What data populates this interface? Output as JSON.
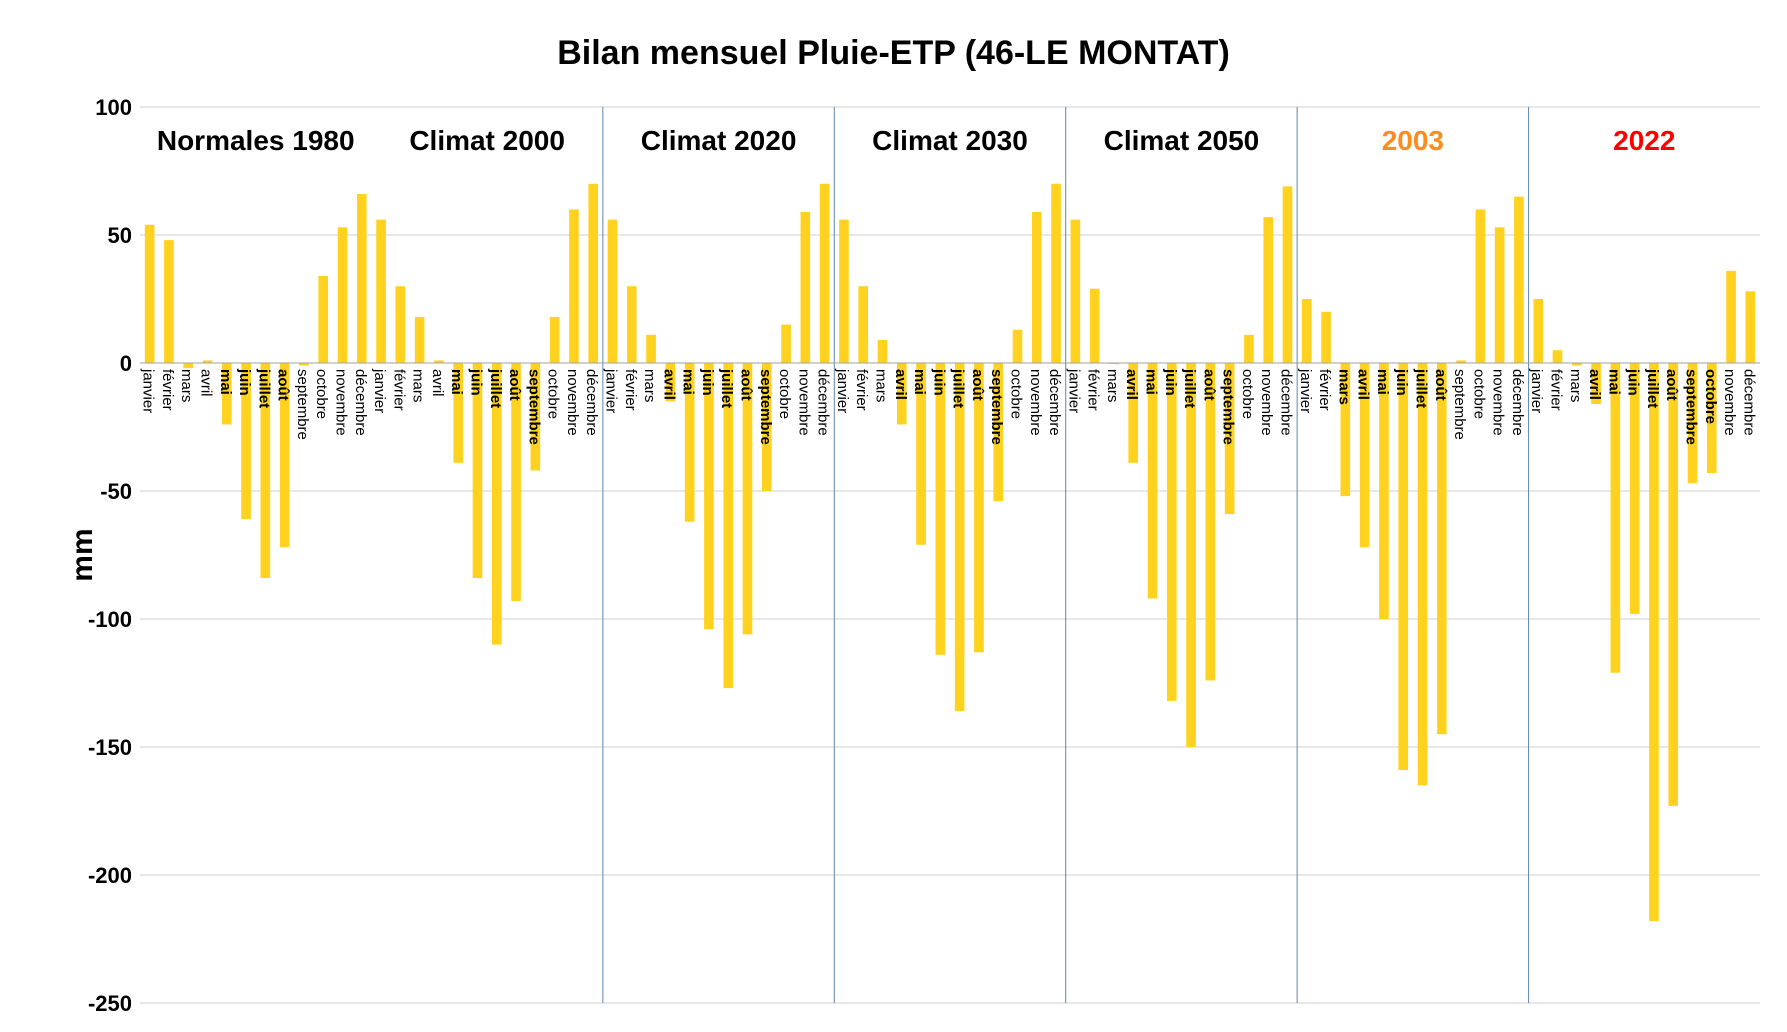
{
  "chart_data": {
    "type": "bar",
    "title": "Bilan mensuel Pluie-ETP  (46-LE MONTAT)",
    "ylabel": "mm",
    "xlabel": "",
    "ylim": [
      -250,
      100
    ],
    "yticks": [
      100,
      50,
      0,
      -50,
      -100,
      -150,
      -200,
      -250
    ],
    "grid": true,
    "bar_color": "#FFD21F",
    "months": [
      "janvier",
      "février",
      "mars",
      "avril",
      "mai",
      "juin",
      "juillet",
      "août",
      "septembre",
      "octobre",
      "novembre",
      "décembre"
    ],
    "groups": [
      {
        "label": "Normales 1980",
        "label_color": "#000000",
        "values": [
          54,
          48,
          -2,
          1,
          -24,
          -61,
          -84,
          -72,
          -1,
          34,
          53,
          66
        ]
      },
      {
        "label": "Climat 2000",
        "label_color": "#000000",
        "values": [
          56,
          30,
          18,
          1,
          -39,
          -84,
          -110,
          -93,
          -42,
          18,
          60,
          70
        ]
      },
      {
        "label": "Climat 2020",
        "label_color": "#000000",
        "values": [
          56,
          30,
          11,
          -15,
          -62,
          -104,
          -127,
          -106,
          -50,
          15,
          59,
          70
        ]
      },
      {
        "label": "Climat 2030",
        "label_color": "#000000",
        "values": [
          56,
          30,
          9,
          -24,
          -71,
          -114,
          -136,
          -113,
          -54,
          13,
          59,
          70
        ]
      },
      {
        "label": "Climat 2050",
        "label_color": "#000000",
        "values": [
          56,
          29,
          0,
          -39,
          -92,
          -132,
          -150,
          -124,
          -59,
          11,
          57,
          69
        ]
      },
      {
        "label": "2003",
        "label_color": "#FF8C1A",
        "values": [
          25,
          20,
          -52,
          -72,
          -100,
          -159,
          -165,
          -145,
          1,
          60,
          53,
          65
        ]
      },
      {
        "label": "2022",
        "label_color": "#FF0000",
        "values": [
          25,
          5,
          -1,
          -16,
          -121,
          -98,
          -218,
          -173,
          -47,
          -43,
          36,
          28
        ]
      }
    ]
  }
}
